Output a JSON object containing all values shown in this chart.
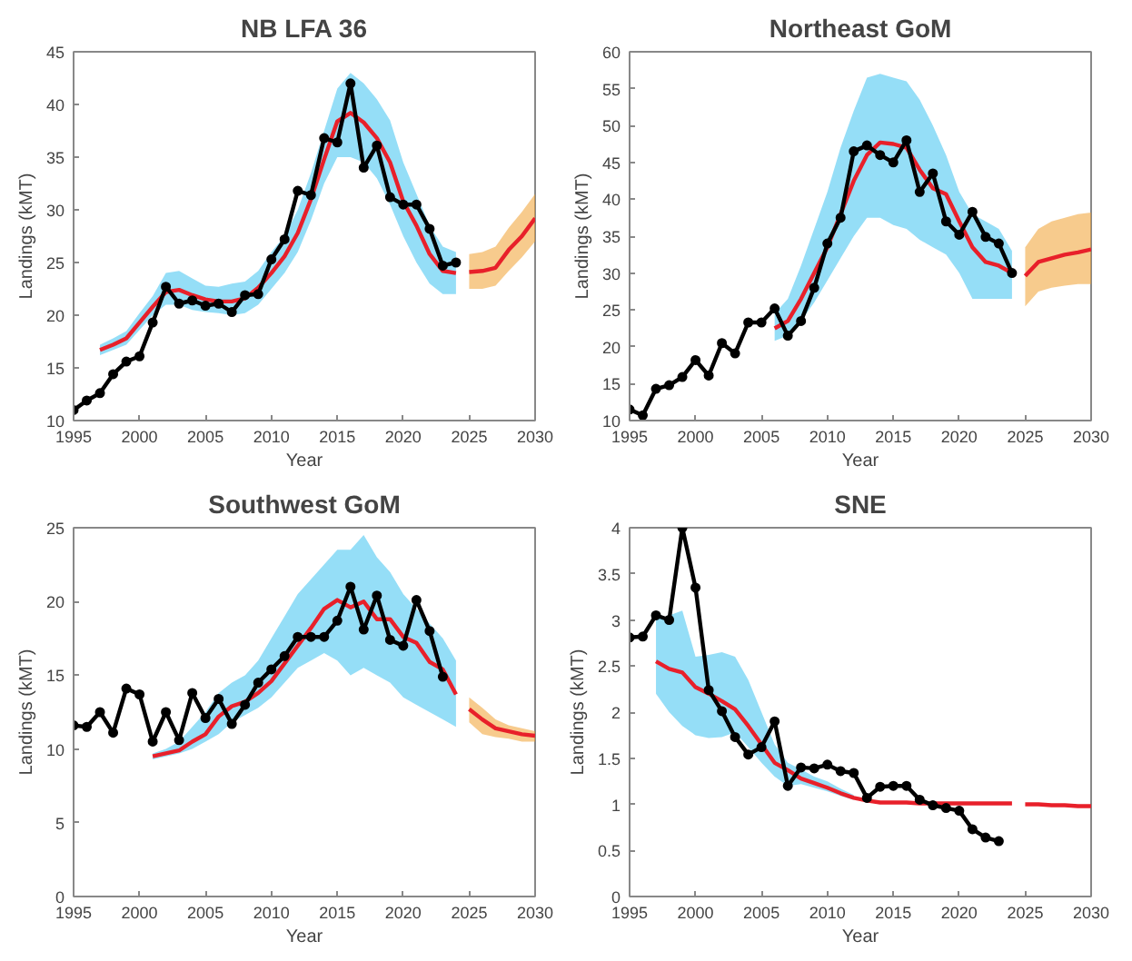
{
  "chart_data": [
    {
      "type": "line",
      "title": "NB LFA 36",
      "xlabel": "Year",
      "ylabel": "Landings (kMT)",
      "xlim": [
        1995,
        2030
      ],
      "xticks": [
        1995,
        2000,
        2005,
        2010,
        2015,
        2020,
        2025,
        2030
      ],
      "ylim": [
        10,
        45
      ],
      "yticks": [
        10,
        15,
        20,
        25,
        30,
        35,
        40,
        45
      ],
      "grid": false,
      "series": [
        {
          "color": "#e8202a",
          "x": [
            1997,
            1998,
            1999,
            2000,
            2001,
            2002,
            2003,
            2004,
            2005,
            2006,
            2007,
            2008,
            2009,
            2010,
            2011,
            2012,
            2013,
            2014,
            2015,
            2016,
            2017,
            2018,
            2019,
            2020,
            2021,
            2022,
            2023,
            2024
          ],
          "values": [
            16.7,
            17.2,
            17.8,
            19.3,
            20.8,
            22.2,
            22.4,
            21.9,
            21.5,
            21.3,
            21.3,
            21.6,
            22.6,
            24.0,
            25.6,
            27.8,
            31.0,
            34.8,
            38.4,
            39.2,
            38.3,
            36.8,
            34.5,
            30.8,
            28.5,
            25.8,
            24.2,
            24.0
          ],
          "lower": [
            16.2,
            16.7,
            17.2,
            18.6,
            20.0,
            21.0,
            21.0,
            20.5,
            20.3,
            20.2,
            20.0,
            20.2,
            21.0,
            22.5,
            24.0,
            26.0,
            29.0,
            32.5,
            35.0,
            35.0,
            34.5,
            33.0,
            30.5,
            27.5,
            25.0,
            23.0,
            22.0,
            22.0
          ],
          "upper": [
            17.2,
            17.8,
            18.5,
            20.2,
            21.8,
            24.0,
            24.2,
            23.5,
            22.8,
            22.7,
            23.0,
            23.2,
            24.2,
            26.0,
            27.5,
            30.0,
            33.5,
            37.5,
            41.5,
            43.0,
            42.0,
            40.5,
            38.5,
            34.5,
            31.5,
            28.5,
            26.5,
            26.0
          ]
        },
        {
          "color": "#e8202a",
          "x": [
            2025,
            2026,
            2027,
            2028,
            2029,
            2030
          ],
          "values": [
            24.1,
            24.2,
            24.5,
            26.2,
            27.5,
            29.2
          ],
          "lower": [
            22.5,
            22.5,
            22.8,
            24.2,
            25.5,
            27.0
          ],
          "upper": [
            25.8,
            26.0,
            26.5,
            28.3,
            29.8,
            31.5
          ]
        },
        {
          "color": "#000000",
          "marker": "circle",
          "x": [
            1995,
            1996,
            1997,
            1998,
            1999,
            2000,
            2001,
            2002,
            2003,
            2004,
            2005,
            2006,
            2007,
            2008,
            2009,
            2010,
            2011,
            2012,
            2013,
            2014,
            2015,
            2016,
            2017,
            2018,
            2019,
            2020,
            2021,
            2022,
            2023,
            2024
          ],
          "values": [
            11.0,
            11.9,
            12.6,
            14.4,
            15.6,
            16.1,
            19.3,
            22.7,
            21.1,
            21.4,
            20.9,
            21.1,
            20.3,
            21.9,
            22.0,
            25.3,
            27.2,
            31.8,
            31.4,
            36.8,
            36.4,
            42.0,
            34.0,
            36.1,
            31.2,
            30.5,
            30.5,
            28.2,
            24.7,
            25.0
          ]
        }
      ]
    },
    {
      "type": "line",
      "title": "Northeast GoM",
      "xlabel": "Year",
      "ylabel": "Landings (kMT)",
      "xlim": [
        1995,
        2030
      ],
      "xticks": [
        1995,
        2000,
        2005,
        2010,
        2015,
        2020,
        2025,
        2030
      ],
      "ylim": [
        10,
        60
      ],
      "yticks": [
        10,
        15,
        20,
        25,
        30,
        35,
        40,
        45,
        50,
        55,
        60
      ],
      "grid": false,
      "series": [
        {
          "color": "#e8202a",
          "x": [
            2006,
            2007,
            2008,
            2009,
            2010,
            2011,
            2012,
            2013,
            2014,
            2015,
            2016,
            2017,
            2018,
            2019,
            2020,
            2021,
            2022,
            2023,
            2024
          ],
          "values": [
            22.5,
            23.5,
            26.5,
            30.0,
            33.5,
            38.0,
            42.5,
            46.0,
            47.7,
            47.5,
            47.0,
            44.0,
            41.5,
            40.7,
            37.0,
            33.5,
            31.5,
            31.0,
            30.0
          ],
          "lower": [
            20.8,
            21.5,
            23.5,
            26.0,
            29.0,
            32.0,
            35.0,
            37.5,
            37.5,
            36.5,
            36.0,
            34.5,
            33.5,
            32.5,
            30.0,
            26.5,
            26.5,
            26.5,
            26.5
          ],
          "upper": [
            24.5,
            26.5,
            31.0,
            36.0,
            41.0,
            47.0,
            52.0,
            56.5,
            57.0,
            56.5,
            56.0,
            53.5,
            50.0,
            46.0,
            41.0,
            38.0,
            37.0,
            36.0,
            33.0
          ]
        },
        {
          "color": "#e8202a",
          "x": [
            2025,
            2026,
            2027,
            2028,
            2029,
            2030
          ],
          "values": [
            29.6,
            31.5,
            32.0,
            32.5,
            32.8,
            33.2
          ],
          "lower": [
            25.5,
            27.5,
            28.0,
            28.3,
            28.5,
            28.5
          ],
          "upper": [
            33.5,
            36.0,
            37.0,
            37.5,
            38.0,
            38.2
          ]
        },
        {
          "color": "#000000",
          "marker": "circle",
          "x": [
            1995,
            1996,
            1997,
            1998,
            1999,
            2000,
            2001,
            2002,
            2003,
            2004,
            2005,
            2006,
            2007,
            2008,
            2009,
            2010,
            2011,
            2012,
            2013,
            2014,
            2015,
            2016,
            2017,
            2018,
            2019,
            2020,
            2021,
            2022,
            2023,
            2024
          ],
          "values": [
            11.5,
            10.7,
            14.3,
            14.8,
            15.9,
            18.2,
            16.1,
            20.5,
            19.1,
            23.3,
            23.3,
            25.2,
            21.5,
            23.5,
            28.0,
            34.0,
            37.5,
            46.5,
            47.3,
            46.0,
            45.0,
            48.0,
            41.0,
            43.5,
            37.0,
            35.2,
            38.3,
            34.9,
            34.0,
            30.0
          ]
        }
      ]
    },
    {
      "type": "line",
      "title": "Southwest GoM",
      "xlabel": "Year",
      "ylabel": "Landings (kMT)",
      "xlim": [
        1995,
        2030
      ],
      "xticks": [
        1995,
        2000,
        2005,
        2010,
        2015,
        2020,
        2025,
        2030
      ],
      "ylim": [
        0,
        25
      ],
      "yticks": [
        0,
        5,
        10,
        15,
        20,
        25
      ],
      "grid": false,
      "series": [
        {
          "color": "#e8202a",
          "x": [
            2001,
            2002,
            2003,
            2004,
            2005,
            2006,
            2007,
            2008,
            2009,
            2010,
            2011,
            2012,
            2013,
            2014,
            2015,
            2016,
            2017,
            2018,
            2019,
            2020,
            2021,
            2022,
            2023,
            2024
          ],
          "values": [
            9.5,
            9.7,
            9.9,
            10.5,
            11.0,
            12.2,
            12.9,
            13.2,
            13.8,
            14.6,
            15.8,
            17.0,
            18.2,
            19.5,
            20.1,
            19.6,
            20.0,
            18.8,
            18.8,
            17.6,
            17.2,
            15.9,
            15.4,
            13.7
          ],
          "lower": [
            9.3,
            9.5,
            9.7,
            10.0,
            10.5,
            11.0,
            11.8,
            12.3,
            12.8,
            13.5,
            14.5,
            15.5,
            16.0,
            16.5,
            16.0,
            15.0,
            15.5,
            15.0,
            14.5,
            13.5,
            13.0,
            12.5,
            12.0,
            11.5
          ],
          "upper": [
            9.7,
            10.0,
            10.5,
            11.5,
            12.5,
            13.8,
            14.5,
            15.0,
            16.0,
            17.5,
            19.0,
            20.5,
            21.5,
            22.5,
            23.5,
            23.5,
            24.5,
            23.0,
            22.0,
            20.5,
            19.5,
            18.5,
            17.5,
            16.0
          ]
        },
        {
          "color": "#e8202a",
          "x": [
            2025,
            2026,
            2027,
            2028,
            2029,
            2030
          ],
          "values": [
            12.7,
            12.0,
            11.4,
            11.2,
            11.0,
            10.9
          ],
          "lower": [
            11.8,
            11.0,
            10.8,
            10.7,
            10.5,
            10.5
          ],
          "upper": [
            13.5,
            12.8,
            12.0,
            11.6,
            11.4,
            11.2
          ]
        },
        {
          "color": "#000000",
          "marker": "circle",
          "x": [
            1995,
            1996,
            1997,
            1998,
            1999,
            2000,
            2001,
            2002,
            2003,
            2004,
            2005,
            2006,
            2007,
            2008,
            2009,
            2010,
            2011,
            2012,
            2013,
            2014,
            2015,
            2016,
            2017,
            2018,
            2019,
            2020,
            2021,
            2022,
            2023
          ],
          "values": [
            11.6,
            11.5,
            12.5,
            11.1,
            14.1,
            13.7,
            10.5,
            12.5,
            10.6,
            13.8,
            12.1,
            13.4,
            11.7,
            13.0,
            14.5,
            15.4,
            16.3,
            17.6,
            17.6,
            17.6,
            18.7,
            21.0,
            18.1,
            20.4,
            17.4,
            17.0,
            20.1,
            18.0,
            14.9
          ]
        }
      ]
    },
    {
      "type": "line",
      "title": "SNE",
      "xlabel": "Year",
      "ylabel": "Landings (kMT)",
      "xlim": [
        1995,
        2030
      ],
      "xticks": [
        1995,
        2000,
        2005,
        2010,
        2015,
        2020,
        2025,
        2030
      ],
      "ylim": [
        0,
        4
      ],
      "yticks": [
        0,
        0.5,
        1,
        1.5,
        2,
        2.5,
        3,
        3.5,
        4
      ],
      "grid": false,
      "series": [
        {
          "color": "#e8202a",
          "x": [
            1997,
            1998,
            1999,
            2000,
            2001,
            2002,
            2003,
            2004,
            2005,
            2006,
            2007,
            2008,
            2009,
            2010,
            2011,
            2012,
            2013,
            2014,
            2015,
            2016,
            2017,
            2018,
            2019,
            2020,
            2021,
            2022,
            2023,
            2024
          ],
          "values": [
            2.55,
            2.47,
            2.43,
            2.27,
            2.2,
            2.12,
            2.03,
            1.85,
            1.65,
            1.45,
            1.37,
            1.28,
            1.23,
            1.18,
            1.12,
            1.07,
            1.04,
            1.02,
            1.02,
            1.02,
            1.01,
            1.01,
            1.01,
            1.01,
            1.01,
            1.01,
            1.01,
            1.01
          ],
          "lower": [
            2.2,
            2.0,
            1.85,
            1.75,
            1.72,
            1.73,
            1.78,
            1.62,
            1.45,
            1.3,
            1.2,
            1.22,
            1.18,
            1.14,
            1.09,
            1.05,
            null,
            null,
            null,
            null,
            null,
            null,
            null,
            null,
            null,
            null,
            null,
            null
          ],
          "upper": [
            3.0,
            3.05,
            3.1,
            2.6,
            2.62,
            2.65,
            2.6,
            2.35,
            2.0,
            1.65,
            1.45,
            1.38,
            1.3,
            1.25,
            1.17,
            1.1,
            null,
            null,
            null,
            null,
            null,
            null,
            null,
            null,
            null,
            null,
            null,
            null
          ]
        },
        {
          "color": "#e8202a",
          "x": [
            2025,
            2026,
            2027,
            2028,
            2029,
            2030
          ],
          "values": [
            1.0,
            1.0,
            0.99,
            0.99,
            0.98,
            0.98
          ]
        },
        {
          "color": "#000000",
          "marker": "circle",
          "x": [
            1995,
            1996,
            1997,
            1998,
            1999,
            2000,
            2001,
            2002,
            2003,
            2004,
            2005,
            2006,
            2007,
            2008,
            2009,
            2010,
            2011,
            2012,
            2013,
            2014,
            2015,
            2016,
            2017,
            2018,
            2019,
            2020,
            2021,
            2022,
            2023
          ],
          "values": [
            2.81,
            2.82,
            3.05,
            3.0,
            4.0,
            3.35,
            2.24,
            2.01,
            1.73,
            1.54,
            1.62,
            1.9,
            1.2,
            1.4,
            1.39,
            1.43,
            1.36,
            1.34,
            1.07,
            1.19,
            1.2,
            1.2,
            1.05,
            0.99,
            0.96,
            0.93,
            0.73,
            0.64,
            0.6
          ]
        }
      ]
    }
  ]
}
